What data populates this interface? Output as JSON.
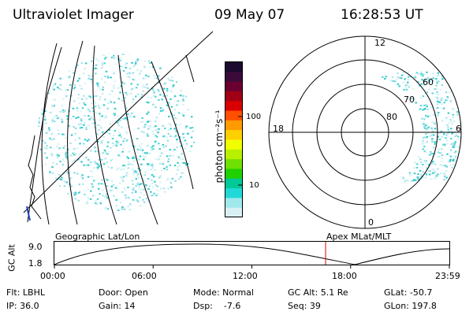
{
  "header": {
    "instrument": "Ultraviolet Imager",
    "date": "09 May 07",
    "time": "16:28:53 UT"
  },
  "colorbar": {
    "unit_label": "photon cm⁻²s⁻¹",
    "tick_labels": [
      "100",
      "10"
    ],
    "colors": [
      "#1a0a2e",
      "#3a0a3a",
      "#6a0030",
      "#a00015",
      "#d80000",
      "#ff5000",
      "#ff9a00",
      "#ffd000",
      "#f0ff00",
      "#b8f000",
      "#70e000",
      "#20d000",
      "#00c896",
      "#20d8d8",
      "#a0e8ec",
      "#d8f0f4"
    ]
  },
  "polar_plot": {
    "mlt_labels": [
      "12",
      "18",
      "6",
      "0"
    ],
    "mlat_labels": [
      "60",
      "70",
      "80"
    ]
  },
  "timeline": {
    "left_title": "Geographic Lat/Lon",
    "right_title": "Apex MLat/MLT",
    "y_axis_title": "GC Alt",
    "y_ticks": [
      "9.0",
      "1.8"
    ],
    "x_ticks": [
      "00:00",
      "06:00",
      "12:00",
      "18:00",
      "23:59"
    ],
    "current_time_hours": 16.48,
    "marker_color": "#e00000"
  },
  "footer": {
    "flt": "Flt: LBHL",
    "ip": "IP: 36.0",
    "door": "Door: Open",
    "gain": "Gain: 14",
    "mode": "Mode: Normal",
    "dsp": "Dsp:    -7.6",
    "gc_alt": "GC Alt: 5.1 Re",
    "seq": "Seq: 39",
    "glat": "GLat: -50.7",
    "glon": "GLon: 197.8"
  }
}
